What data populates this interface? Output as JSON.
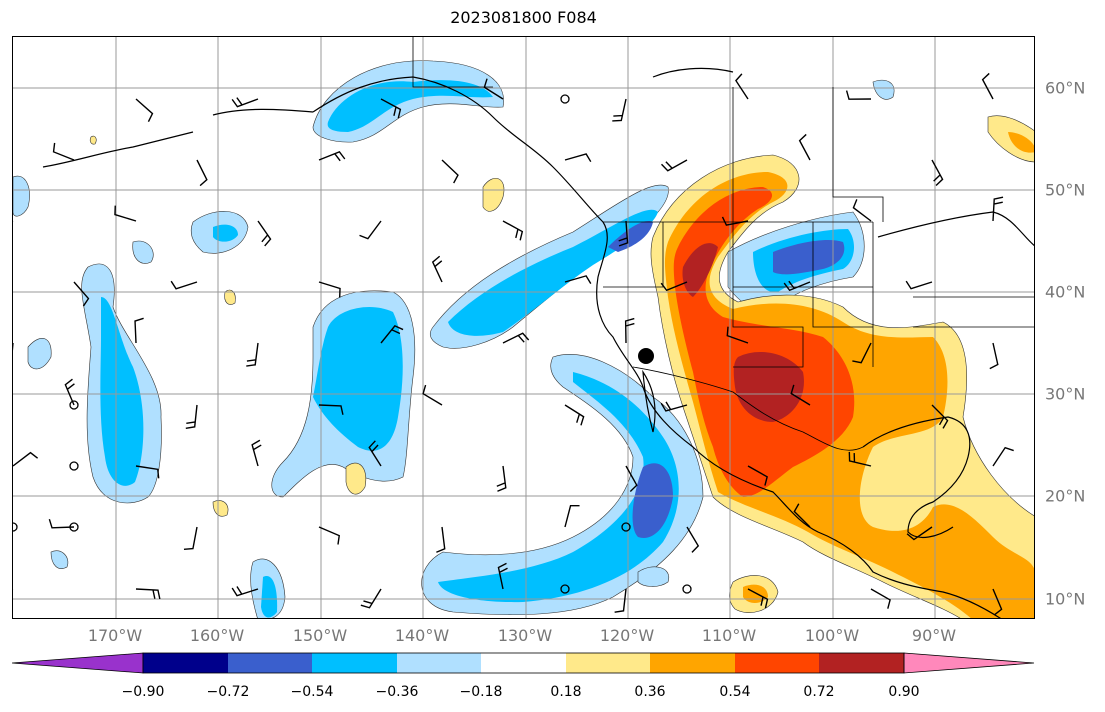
{
  "title": "2023081800 F084",
  "lon_labels": [
    "170°W",
    "160°W",
    "150°W",
    "140°W",
    "130°W",
    "120°W",
    "110°W",
    "100°W",
    "90°W"
  ],
  "lat_labels": [
    "60°N",
    "50°N",
    "40°N",
    "30°N",
    "20°N",
    "10°N"
  ],
  "colorbar": {
    "ticks": [
      "−0.90",
      "−0.72",
      "−0.54",
      "−0.36",
      "−0.18",
      "0.18",
      "0.36",
      "0.54",
      "0.72",
      "0.90"
    ],
    "colors": [
      "#9932cc",
      "#00008b",
      "#3a5fcd",
      "#00bfff",
      "#b0e0ff",
      "#ffffff",
      "#ffe98a",
      "#ffa500",
      "#ff4500",
      "#b22222",
      "#ff88bb"
    ]
  },
  "legend_colors": {
    "neg_light": "#b0e0ff",
    "neg_mid": "#00bfff",
    "neg_strong": "#3a5fcd",
    "pos_light": "#ffe98a",
    "pos_mid": "#ffa500",
    "pos_strong": "#ff4500",
    "pos_max": "#b22222"
  },
  "marker": {
    "label": "point-marker"
  }
}
